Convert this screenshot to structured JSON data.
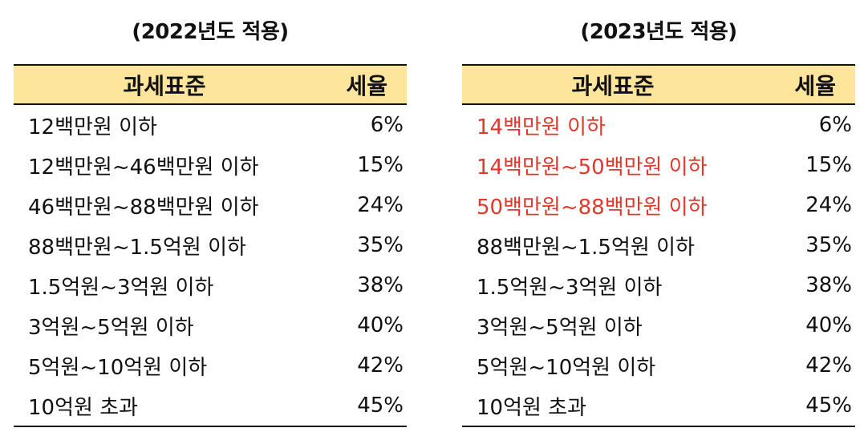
{
  "colors": {
    "header_bg": "#fde59c",
    "highlight": "#e0392b",
    "text": "#111111"
  },
  "tables": [
    {
      "title": "(2022년도 적용)",
      "header": {
        "base": "과세표준",
        "rate": "세율"
      },
      "rows": [
        {
          "base": "12백만원 이하",
          "rate": "6%"
        },
        {
          "base": "12백만원~46백만원 이하",
          "rate": "15%"
        },
        {
          "base": "46백만원~88백만원 이하",
          "rate": "24%"
        },
        {
          "base": "88백만원~1.5억원 이하",
          "rate": "35%"
        },
        {
          "base": "1.5억원~3억원 이하",
          "rate": "38%"
        },
        {
          "base": "3억원~5억원 이하",
          "rate": "40%"
        },
        {
          "base": "5억원~10억원 이하",
          "rate": "42%"
        },
        {
          "base": "10억원 초과",
          "rate": "45%"
        }
      ]
    },
    {
      "title": "(2023년도 적용)",
      "header": {
        "base": "과세표준",
        "rate": "세율"
      },
      "rows": [
        {
          "base": "14백만원 이하",
          "rate": "6%",
          "highlight": true
        },
        {
          "base": "14백만원~50백만원 이하",
          "rate": "15%",
          "highlight": true
        },
        {
          "base": "50백만원~88백만원 이하",
          "rate": "24%",
          "highlight": true
        },
        {
          "base": "88백만원~1.5억원 이하",
          "rate": "35%"
        },
        {
          "base": "1.5억원~3억원 이하",
          "rate": "38%"
        },
        {
          "base": "3억원~5억원 이하",
          "rate": "40%"
        },
        {
          "base": "5억원~10억원 이하",
          "rate": "42%"
        },
        {
          "base": "10억원 초과",
          "rate": "45%"
        }
      ]
    }
  ]
}
